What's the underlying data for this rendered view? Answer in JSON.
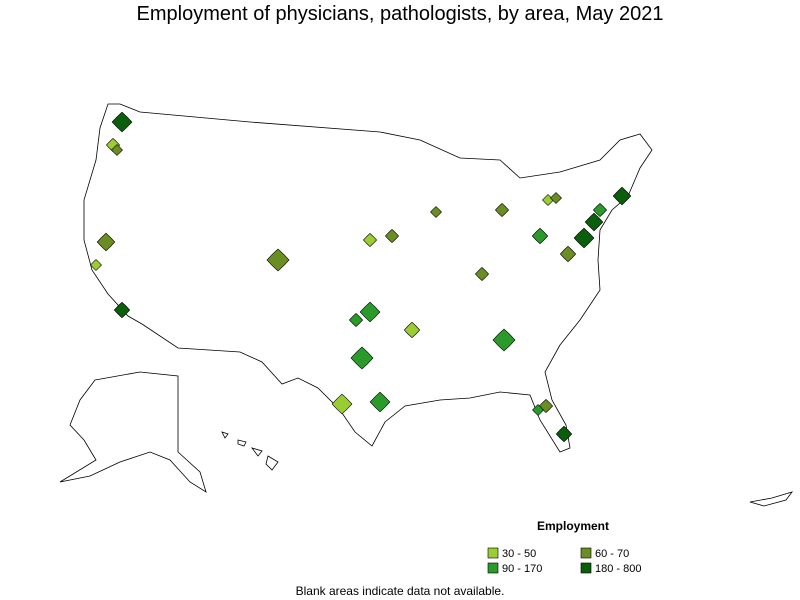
{
  "title": "Employment of physicians, pathologists, by area, May 2021",
  "legend": {
    "title": "Employment",
    "items": [
      {
        "label": "30 - 50",
        "color": "#9acd32"
      },
      {
        "label": "60 - 70",
        "color": "#6b8e23"
      },
      {
        "label": "90 - 170",
        "color": "#2a9a2a"
      },
      {
        "label": "180 - 800",
        "color": "#0b5e0b"
      }
    ]
  },
  "note": "Blank areas indicate data not available."
}
